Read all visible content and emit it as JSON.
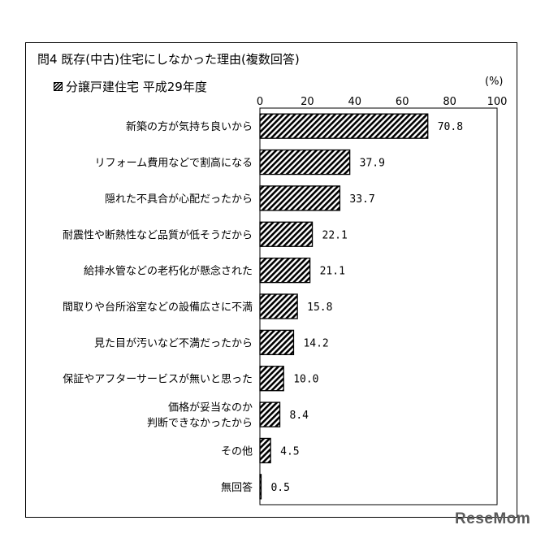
{
  "title": "問4 既存(中古)住宅にしなかった理由(複数回答)",
  "unit": "(%)",
  "watermark": "ReseMom",
  "chart_data": {
    "type": "bar",
    "orientation": "horizontal",
    "series": [
      {
        "name": "分譲戸建住宅 平成29年度",
        "values": [
          70.8,
          37.9,
          33.7,
          22.1,
          21.1,
          15.8,
          14.2,
          10.0,
          8.4,
          4.5,
          0.5
        ]
      }
    ],
    "categories": [
      "新築の方が気持ち良いから",
      "リフォーム費用などで割高になる",
      "隠れた不具合が心配だったから",
      "耐震性や断熱性など品質が低そうだから",
      "給排水管などの老朽化が懸念された",
      "間取りや台所浴室などの設備広さに不満",
      "見た目が汚いなど不満だったから",
      "保証やアフターサービスが無いと思った",
      "価格が妥当なのか\n判断できなかったから",
      "その他",
      "無回答"
    ],
    "value_labels": [
      "70.8",
      "37.9",
      "33.7",
      "22.1",
      "21.1",
      "15.8",
      "14.2",
      "10.0",
      "8.4",
      "4.5",
      "0.5"
    ],
    "xlim": [
      0,
      100
    ],
    "xticks": [
      "0",
      "20",
      "40",
      "60",
      "80",
      "100"
    ],
    "bar_pattern": "diagonal-hatch",
    "legend_position": "top-left",
    "grid": false
  }
}
